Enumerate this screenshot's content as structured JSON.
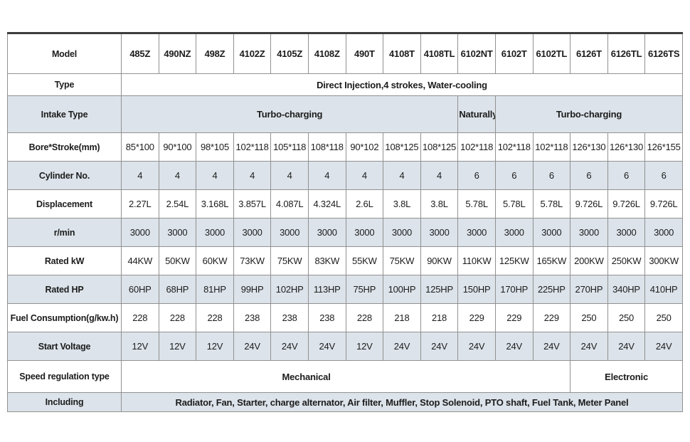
{
  "table": {
    "colors": {
      "shaded_row": "#dce3ea",
      "border": "#919191",
      "top_border": "#3d3d3d",
      "text": "#1c1c1c"
    },
    "rows": [
      {
        "label": "Model",
        "shaded": false,
        "cells": [
          {
            "text": "485Z",
            "bold": true
          },
          {
            "text": "490NZ",
            "bold": true
          },
          {
            "text": "498Z",
            "bold": true
          },
          {
            "text": "4102Z",
            "bold": true
          },
          {
            "text": "4105Z",
            "bold": true
          },
          {
            "text": "4108Z",
            "bold": true
          },
          {
            "text": "490T",
            "bold": true
          },
          {
            "text": "4108T",
            "bold": true
          },
          {
            "text": "4108TL",
            "bold": true
          },
          {
            "text": "6102NT",
            "bold": true
          },
          {
            "text": "6102T",
            "bold": true
          },
          {
            "text": "6102TL",
            "bold": true
          },
          {
            "text": "6126T",
            "bold": true
          },
          {
            "text": "6126TL",
            "bold": true
          },
          {
            "text": "6126TS",
            "bold": true
          }
        ]
      },
      {
        "label": "Type",
        "shaded": false,
        "cells": [
          {
            "text": "Direct Injection,4 strokes, Water-cooling",
            "span": 15,
            "bold": true
          }
        ]
      },
      {
        "label": "Intake Type",
        "shaded": true,
        "cells": [
          {
            "text": "Turbo-charging",
            "span": 9,
            "bold": true
          },
          {
            "text": "Naturally",
            "span": 1,
            "bold": true
          },
          {
            "text": "Turbo-charging",
            "span": 5,
            "bold": true
          }
        ]
      },
      {
        "label": "Bore*Stroke(mm)",
        "shaded": false,
        "cells": [
          "85*100",
          "90*100",
          "98*105",
          "102*118",
          "105*118",
          "108*118",
          "90*102",
          "108*125",
          "108*125",
          "102*118",
          "102*118",
          "102*118",
          "126*130",
          "126*130",
          "126*155"
        ]
      },
      {
        "label": "Cylinder No.",
        "shaded": true,
        "cells": [
          "4",
          "4",
          "4",
          "4",
          "4",
          "4",
          "4",
          "4",
          "4",
          "6",
          "6",
          "6",
          "6",
          "6",
          "6"
        ]
      },
      {
        "label": "Displacement",
        "shaded": false,
        "cells": [
          "2.27L",
          "2.54L",
          "3.168L",
          "3.857L",
          "4.087L",
          "4.324L",
          "2.6L",
          "3.8L",
          "3.8L",
          "5.78L",
          "5.78L",
          "5.78L",
          "9.726L",
          "9.726L",
          "9.726L"
        ]
      },
      {
        "label": "r/min",
        "shaded": true,
        "cells": [
          "3000",
          "3000",
          "3000",
          "3000",
          "3000",
          "3000",
          "3000",
          "3000",
          "3000",
          "3000",
          "3000",
          "3000",
          "3000",
          "3000",
          "3000"
        ]
      },
      {
        "label": "Rated kW",
        "shaded": false,
        "cells": [
          "44KW",
          "50KW",
          "60KW",
          "73KW",
          "75KW",
          "83KW",
          "55KW",
          "75KW",
          "90KW",
          "110KW",
          "125KW",
          "165KW",
          "200KW",
          "250KW",
          "300KW"
        ]
      },
      {
        "label": "Rated HP",
        "shaded": true,
        "cells": [
          "60HP",
          "68HP",
          "81HP",
          "99HP",
          "102HP",
          "113HP",
          "75HP",
          "100HP",
          "125HP",
          "150HP",
          "170HP",
          "225HP",
          "270HP",
          "340HP",
          "410HP"
        ]
      },
      {
        "label": "Fuel Consumption(g/kw.h)",
        "shaded": false,
        "cells": [
          "228",
          "228",
          "228",
          "238",
          "238",
          "238",
          "228",
          "218",
          "218",
          "229",
          "229",
          "229",
          "250",
          "250",
          "250"
        ]
      },
      {
        "label": "Start Voltage",
        "shaded": true,
        "cells": [
          "12V",
          "12V",
          "12V",
          "24V",
          "24V",
          "24V",
          "12V",
          "24V",
          "24V",
          "24V",
          "24V",
          "24V",
          "24V",
          "24V",
          "24V"
        ]
      },
      {
        "label": "Speed regulation type",
        "shaded": false,
        "cells": [
          {
            "text": "Mechanical",
            "span": 12,
            "bold": true
          },
          {
            "text": "Electronic",
            "span": 3,
            "bold": true
          }
        ]
      },
      {
        "label": "Including",
        "shaded": true,
        "cells": [
          {
            "text": "Radiator, Fan, Starter, charge alternator, Air filter, Muffler, Stop Solenoid, PTO shaft, Fuel Tank, Meter Panel",
            "span": 15,
            "bold": true,
            "align": "left"
          }
        ]
      }
    ]
  }
}
